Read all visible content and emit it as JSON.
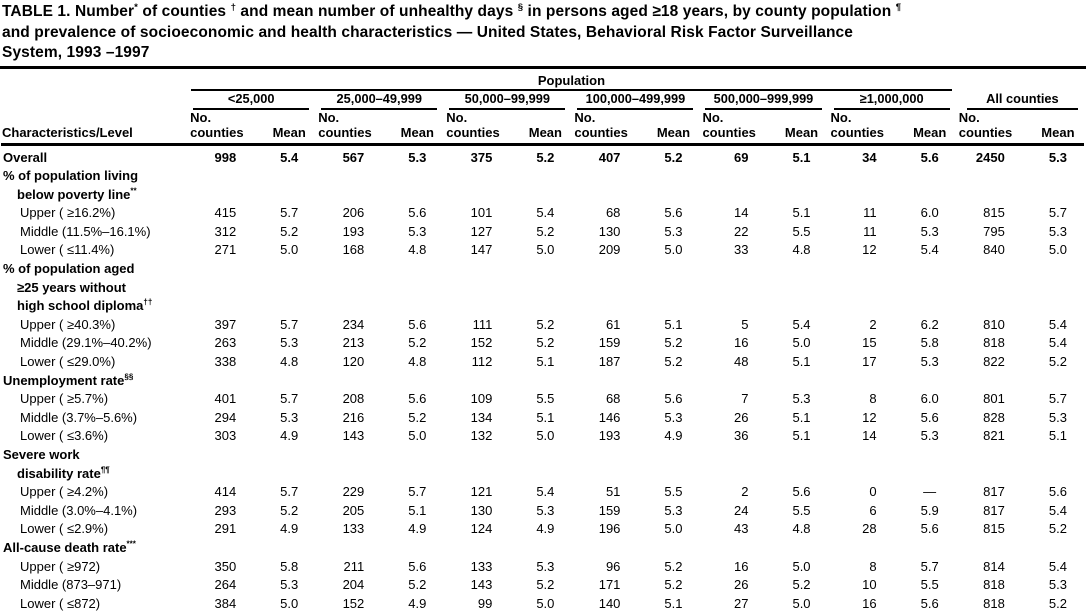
{
  "document": {
    "title_segments": [
      {
        "t": "TABLE 1. Number"
      },
      {
        "t": "*",
        "sup": true
      },
      {
        "t": " of counties "
      },
      {
        "t": "†",
        "sup": true
      },
      {
        "t": " and mean number of unhealthy days "
      },
      {
        "t": "§",
        "sup": true
      },
      {
        "t": " in persons aged ≥18 years, by county population "
      },
      {
        "t": "¶",
        "sup": true
      },
      {
        "br": true
      },
      {
        "t": "and prevalence of socioeconomic and health characteristics — United States, Behavioral Risk Factor Surveillance"
      },
      {
        "br": true
      },
      {
        "t": "System, 1993 –1997"
      }
    ]
  },
  "table": {
    "characteristics_header": "Characteristics/Level",
    "population_header": "Population",
    "group_headers": [
      "<25,000",
      "25,000–49,999",
      "50,000–99,999",
      "100,000–499,999",
      "500,000–999,999",
      "≥1,000,000",
      "All counties"
    ],
    "population_group_count": 6,
    "subheader": {
      "no_line1": "No.",
      "no_line2": "counties",
      "mean": "Mean"
    },
    "rows": [
      {
        "type": "data",
        "bold": true,
        "indent": 0,
        "label": [
          {
            "t": "Overall"
          }
        ],
        "values": [
          "998",
          "5.4",
          "567",
          "5.3",
          "375",
          "5.2",
          "407",
          "5.2",
          "69",
          "5.1",
          "34",
          "5.6",
          "2450",
          "5.3"
        ]
      },
      {
        "type": "section",
        "lines": [
          {
            "indent": 0,
            "segs": [
              {
                "t": "% of population living"
              }
            ]
          },
          {
            "indent": 1,
            "segs": [
              {
                "t": "below poverty line"
              },
              {
                "t": "**",
                "sup": true
              }
            ]
          }
        ]
      },
      {
        "type": "data",
        "indent": 2,
        "label": [
          {
            "t": "Upper ( ≥16.2%)"
          }
        ],
        "values": [
          "415",
          "5.7",
          "206",
          "5.6",
          "101",
          "5.4",
          "68",
          "5.6",
          "14",
          "5.1",
          "11",
          "6.0",
          "815",
          "5.7"
        ]
      },
      {
        "type": "data",
        "indent": 2,
        "label": [
          {
            "t": "Middle (11.5%–16.1%)"
          }
        ],
        "values": [
          "312",
          "5.2",
          "193",
          "5.3",
          "127",
          "5.2",
          "130",
          "5.3",
          "22",
          "5.5",
          "11",
          "5.3",
          "795",
          "5.3"
        ]
      },
      {
        "type": "data",
        "indent": 2,
        "label": [
          {
            "t": "Lower ( ≤11.4%)"
          }
        ],
        "values": [
          "271",
          "5.0",
          "168",
          "4.8",
          "147",
          "5.0",
          "209",
          "5.0",
          "33",
          "4.8",
          "12",
          "5.4",
          "840",
          "5.0"
        ]
      },
      {
        "type": "section",
        "lines": [
          {
            "indent": 0,
            "segs": [
              {
                "t": "% of population aged"
              }
            ]
          },
          {
            "indent": 1,
            "segs": [
              {
                "t": "≥25 years without"
              }
            ]
          },
          {
            "indent": 1,
            "segs": [
              {
                "t": "high school diploma"
              },
              {
                "t": "††",
                "sup": true
              }
            ]
          }
        ]
      },
      {
        "type": "data",
        "indent": 2,
        "label": [
          {
            "t": "Upper ( ≥40.3%)"
          }
        ],
        "values": [
          "397",
          "5.7",
          "234",
          "5.6",
          "111",
          "5.2",
          "61",
          "5.1",
          "5",
          "5.4",
          "2",
          "6.2",
          "810",
          "5.4"
        ]
      },
      {
        "type": "data",
        "indent": 2,
        "label": [
          {
            "t": "Middle (29.1%–40.2%)"
          }
        ],
        "values": [
          "263",
          "5.3",
          "213",
          "5.2",
          "152",
          "5.2",
          "159",
          "5.2",
          "16",
          "5.0",
          "15",
          "5.8",
          "818",
          "5.4"
        ]
      },
      {
        "type": "data",
        "indent": 2,
        "label": [
          {
            "t": "Lower ( ≤29.0%)"
          }
        ],
        "values": [
          "338",
          "4.8",
          "120",
          "4.8",
          "112",
          "5.1",
          "187",
          "5.2",
          "48",
          "5.1",
          "17",
          "5.3",
          "822",
          "5.2"
        ]
      },
      {
        "type": "section",
        "lines": [
          {
            "indent": 0,
            "segs": [
              {
                "t": "Unemployment rate"
              },
              {
                "t": "§§",
                "sup": true
              }
            ]
          }
        ]
      },
      {
        "type": "data",
        "indent": 2,
        "label": [
          {
            "t": "Upper ( ≥5.7%)"
          }
        ],
        "values": [
          "401",
          "5.7",
          "208",
          "5.6",
          "109",
          "5.5",
          "68",
          "5.6",
          "7",
          "5.3",
          "8",
          "6.0",
          "801",
          "5.7"
        ]
      },
      {
        "type": "data",
        "indent": 2,
        "label": [
          {
            "t": "Middle (3.7%–5.6%)"
          }
        ],
        "values": [
          "294",
          "5.3",
          "216",
          "5.2",
          "134",
          "5.1",
          "146",
          "5.3",
          "26",
          "5.1",
          "12",
          "5.6",
          "828",
          "5.3"
        ]
      },
      {
        "type": "data",
        "indent": 2,
        "label": [
          {
            "t": "Lower ( ≤3.6%)"
          }
        ],
        "values": [
          "303",
          "4.9",
          "143",
          "5.0",
          "132",
          "5.0",
          "193",
          "4.9",
          "36",
          "5.1",
          "14",
          "5.3",
          "821",
          "5.1"
        ]
      },
      {
        "type": "section",
        "lines": [
          {
            "indent": 0,
            "segs": [
              {
                "t": "Severe work"
              }
            ]
          },
          {
            "indent": 1,
            "segs": [
              {
                "t": "disability rate"
              },
              {
                "t": "¶¶",
                "sup": true
              }
            ]
          }
        ]
      },
      {
        "type": "data",
        "indent": 2,
        "label": [
          {
            "t": "Upper ( ≥4.2%)"
          }
        ],
        "values": [
          "414",
          "5.7",
          "229",
          "5.7",
          "121",
          "5.4",
          "51",
          "5.5",
          "2",
          "5.6",
          "0",
          "—",
          "817",
          "5.6"
        ]
      },
      {
        "type": "data",
        "indent": 2,
        "label": [
          {
            "t": "Middle (3.0%–4.1%)"
          }
        ],
        "values": [
          "293",
          "5.2",
          "205",
          "5.1",
          "130",
          "5.3",
          "159",
          "5.3",
          "24",
          "5.5",
          "6",
          "5.9",
          "817",
          "5.4"
        ]
      },
      {
        "type": "data",
        "indent": 2,
        "label": [
          {
            "t": "Lower ( ≤2.9%)"
          }
        ],
        "values": [
          "291",
          "4.9",
          "133",
          "4.9",
          "124",
          "4.9",
          "196",
          "5.0",
          "43",
          "4.8",
          "28",
          "5.6",
          "815",
          "5.2"
        ]
      },
      {
        "type": "section",
        "lines": [
          {
            "indent": 0,
            "segs": [
              {
                "t": "All-cause death rate"
              },
              {
                "t": "***",
                "sup": true
              }
            ]
          }
        ]
      },
      {
        "type": "data",
        "indent": 2,
        "label": [
          {
            "t": "Upper ( ≥972)"
          }
        ],
        "values": [
          "350",
          "5.8",
          "211",
          "5.6",
          "133",
          "5.3",
          "96",
          "5.2",
          "16",
          "5.0",
          "8",
          "5.7",
          "814",
          "5.4"
        ]
      },
      {
        "type": "data",
        "indent": 2,
        "label": [
          {
            "t": "Middle (873–971)"
          }
        ],
        "values": [
          "264",
          "5.3",
          "204",
          "5.2",
          "143",
          "5.2",
          "171",
          "5.2",
          "26",
          "5.2",
          "10",
          "5.5",
          "818",
          "5.3"
        ]
      },
      {
        "type": "data",
        "indent": 2,
        "label": [
          {
            "t": "Lower ( ≤872)"
          }
        ],
        "values": [
          "384",
          "5.0",
          "152",
          "4.9",
          "99",
          "5.0",
          "140",
          "5.1",
          "27",
          "5.0",
          "16",
          "5.6",
          "818",
          "5.2"
        ]
      }
    ]
  }
}
